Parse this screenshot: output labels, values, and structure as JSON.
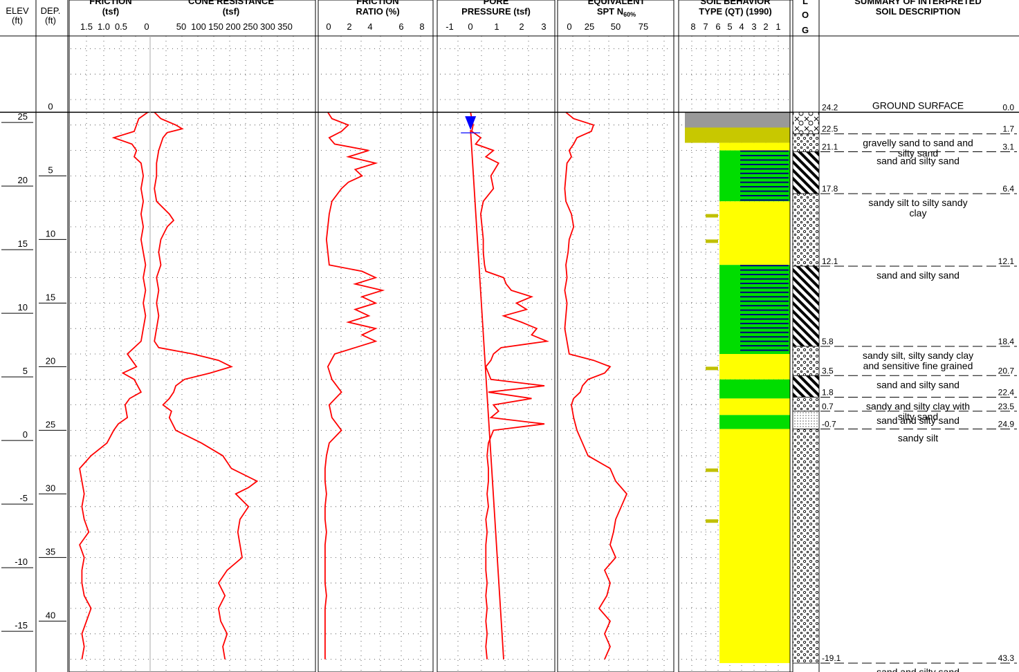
{
  "headers": {
    "elev": "ELEV",
    "elev_unit": "(ft)",
    "dep": "DEP.",
    "dep_unit": "(ft)",
    "friction": "FRICTION",
    "friction_unit": "(tsf)",
    "cone": "CONE RESISTANCE",
    "cone_unit": "(tsf)",
    "fr": "FRICTION",
    "fr_unit": "RATIO (%)",
    "pore": "PORE",
    "pore_unit": "PRESSURE (tsf)",
    "spt": "EQUIVALENT",
    "spt_unit_a": "SPT N",
    "spt_unit_sub": "60%",
    "sbt": "SOIL BEHAVIOR",
    "sbt_unit": "TYPE (QT) (1990)",
    "log_l": "L",
    "log_o": "O",
    "log_g": "G",
    "summary": "SUMMARY OF INTERPRETED",
    "summary_unit": "SOIL DESCRIPTION"
  },
  "axes": {
    "elev_ticks": [
      "25",
      "20",
      "15",
      "10",
      "5",
      "0",
      "-5",
      "-10",
      "-15"
    ],
    "dep_ticks": [
      "0",
      "5",
      "10",
      "15",
      "20",
      "25",
      "30",
      "35",
      "40"
    ],
    "friction_ticks": [
      "1.5",
      "1.0",
      "0.5",
      "0"
    ],
    "cone_ticks": [
      "50",
      "100",
      "150",
      "200",
      "250",
      "300",
      "350"
    ],
    "fr_ticks": [
      "0",
      "2",
      "4",
      "6",
      "8"
    ],
    "pore_ticks": [
      "-1",
      "0",
      "1",
      "2",
      "3"
    ],
    "spt_ticks": [
      "0",
      "25",
      "50",
      "75"
    ],
    "sbt_ticks": [
      "8",
      "7",
      "6",
      "5",
      "4",
      "3",
      "2",
      "1"
    ]
  },
  "chart_data": {
    "type": "line",
    "depth_range_ft": [
      -6,
      44
    ],
    "ground_surface_elev_ft": 24.2,
    "groundwater_depth_ft": 1.4,
    "series": [
      {
        "name": "FRICTION (tsf)",
        "xlim": [
          1.75,
          0
        ],
        "depth": [
          0,
          0.5,
          1,
          1.5,
          2,
          2.5,
          3,
          3.5,
          4,
          5,
          6,
          7,
          8,
          9,
          10,
          11,
          12,
          13,
          14,
          15,
          16,
          17,
          18,
          19,
          19.5,
          20,
          20.5,
          21,
          22,
          22.5,
          23,
          24,
          24.5,
          25,
          26,
          27,
          28,
          29,
          30,
          31,
          32,
          33,
          34,
          35,
          36,
          37,
          38,
          39,
          40,
          41,
          42,
          43
        ],
        "values": [
          0.05,
          0.25,
          0.3,
          0.35,
          0.8,
          0.4,
          0.3,
          0.35,
          0.2,
          0.15,
          0.2,
          0.15,
          0.2,
          0.15,
          0.2,
          0.15,
          0.1,
          0.15,
          0.1,
          0.15,
          0.1,
          0.15,
          0.2,
          0.5,
          0.4,
          0.3,
          0.6,
          0.35,
          0.2,
          0.45,
          0.55,
          0.5,
          0.7,
          0.8,
          0.95,
          1.3,
          1.55,
          1.5,
          1.45,
          1.5,
          1.45,
          1.35,
          1.55,
          1.45,
          1.5,
          1.5,
          1.45,
          1.3,
          1.4,
          1.5,
          1.45,
          1.5
        ]
      },
      {
        "name": "CONE RESISTANCE (tsf)",
        "xlim": [
          0,
          380
        ],
        "depth": [
          0,
          0.5,
          1,
          1.3,
          1.6,
          2,
          2.5,
          3,
          4,
          5,
          6,
          7,
          8,
          8.5,
          9,
          10,
          11,
          12,
          13,
          14,
          15,
          16,
          17,
          18,
          18.5,
          19,
          19.5,
          20,
          20.5,
          21,
          21.5,
          22,
          22.5,
          23,
          23.5,
          24,
          25,
          26,
          27,
          28,
          29,
          29.5,
          30,
          31,
          32,
          33,
          34,
          35,
          36,
          37,
          38,
          39,
          40,
          41,
          42,
          43
        ],
        "values": [
          10,
          25,
          60,
          75,
          40,
          30,
          25,
          20,
          15,
          15,
          10,
          15,
          45,
          55,
          40,
          25,
          20,
          25,
          15,
          20,
          15,
          20,
          15,
          10,
          20,
          100,
          160,
          190,
          140,
          80,
          60,
          55,
          45,
          30,
          50,
          45,
          60,
          120,
          170,
          190,
          250,
          230,
          200,
          230,
          210,
          205,
          210,
          215,
          180,
          160,
          175,
          160,
          165,
          180,
          170,
          175
        ]
      },
      {
        "name": "FRICTION RATIO (%)",
        "xlim": [
          0,
          8
        ],
        "depth": [
          0,
          0.5,
          1,
          1.5,
          2,
          2.5,
          3,
          3.5,
          4,
          4.5,
          5,
          5.5,
          6,
          7,
          8,
          9,
          10,
          11,
          12,
          12.5,
          13,
          13.5,
          14,
          14.5,
          15,
          15.5,
          16,
          16.5,
          17,
          17.5,
          18,
          18.5,
          19,
          20,
          21,
          22,
          23,
          24,
          25,
          26,
          27,
          28,
          29,
          30,
          31,
          32,
          33,
          34,
          35,
          36,
          37,
          38,
          39,
          40,
          41,
          42,
          43
        ],
        "values": [
          0.5,
          0.8,
          2,
          1.5,
          0.6,
          1,
          3.5,
          2,
          4,
          2.5,
          3,
          2,
          1.5,
          0.8,
          0.6,
          0.5,
          0.4,
          0.5,
          0.6,
          3,
          4,
          2.5,
          4.5,
          3,
          4,
          2.5,
          3.5,
          2,
          4,
          3,
          4,
          2.5,
          1,
          0.5,
          0.8,
          1.5,
          0.6,
          0.8,
          1.5,
          0.6,
          0.4,
          0.3,
          0.3,
          0.4,
          0.3,
          0.3,
          0.4,
          0.3,
          0.3,
          0.3,
          0.3,
          0.4,
          0.3,
          0.3,
          0.3,
          0.3,
          0.3
        ]
      },
      {
        "name": "PORE PRESSURE (tsf)",
        "xlim": [
          -1.2,
          3.2
        ],
        "depth": [
          0,
          0.5,
          1,
          1.5,
          2,
          2.5,
          3,
          3.5,
          4,
          5,
          6,
          7,
          8,
          9,
          10,
          11,
          12,
          12.5,
          13,
          13.5,
          14,
          14.5,
          15,
          15.5,
          16,
          16.5,
          17,
          17.5,
          18,
          18.5,
          19,
          19.5,
          20,
          21,
          21.5,
          22,
          22.5,
          23,
          23.5,
          24,
          24.5,
          25,
          26,
          27,
          28,
          29,
          30,
          31,
          32,
          33,
          34,
          35,
          36,
          37,
          38,
          39,
          40,
          41,
          42,
          43
        ],
        "values": [
          0,
          0.05,
          0.1,
          0.05,
          0.4,
          0.2,
          0.9,
          0.6,
          1.1,
          0.8,
          0.9,
          0.5,
          0.4,
          0.45,
          0.5,
          0.5,
          0.55,
          0.6,
          1.3,
          1.4,
          1.6,
          2.4,
          1.8,
          2.2,
          1.3,
          2.0,
          2.6,
          2.4,
          3.0,
          1.2,
          0.9,
          0.8,
          0.6,
          0.8,
          2.9,
          0.7,
          2.4,
          0.9,
          1.1,
          0.8,
          2.9,
          0.9,
          0.7,
          0.65,
          0.7,
          0.7,
          0.65,
          0.7,
          0.6,
          0.65,
          0.6,
          0.6,
          0.6,
          0.65,
          0.6,
          0.65,
          0.6,
          0.65,
          0.6,
          0.65
        ]
      },
      {
        "name": "HYDROSTATIC (tsf)",
        "xlim": [
          -1.2,
          3.2
        ],
        "depth": [
          1.4,
          43
        ],
        "values": [
          0,
          1.3
        ]
      },
      {
        "name": "EQUIVALENT SPT N60%",
        "xlim": [
          0,
          100
        ],
        "depth": [
          0,
          0.5,
          1,
          1.5,
          2,
          2.5,
          3,
          3.5,
          4,
          5,
          6,
          7,
          8,
          9,
          10,
          11,
          12,
          13,
          14,
          15,
          16,
          17,
          18,
          19,
          19.5,
          20,
          20.5,
          21,
          21.5,
          22,
          22.5,
          23,
          24,
          25,
          26,
          27,
          28,
          29,
          30,
          31,
          32,
          33,
          34,
          35,
          36,
          37,
          38,
          39,
          40,
          41,
          42,
          43
        ],
        "values": [
          5,
          12,
          30,
          28,
          15,
          12,
          8,
          10,
          6,
          5,
          4,
          5,
          10,
          12,
          8,
          7,
          5,
          6,
          4,
          6,
          5,
          4,
          6,
          8,
          30,
          45,
          40,
          25,
          20,
          18,
          12,
          10,
          12,
          15,
          20,
          25,
          45,
          50,
          60,
          55,
          50,
          48,
          45,
          50,
          40,
          45,
          42,
          35,
          45,
          40,
          45,
          40
        ]
      }
    ],
    "soil_behavior_bands": [
      {
        "top": 0,
        "bottom": 1.2,
        "zone": 9,
        "color": "#999999"
      },
      {
        "top": 1.2,
        "bottom": 2.4,
        "zone": 8,
        "color": "#c8c800"
      },
      {
        "top": 2.4,
        "bottom": 3.0,
        "zone": 7,
        "color": "#ffff00"
      },
      {
        "top": 3.0,
        "bottom": 7.0,
        "zone": 5,
        "color": "#00dd00"
      },
      {
        "top": 7.0,
        "bottom": 12.0,
        "zone": 7,
        "color": "#ffff00"
      },
      {
        "top": 12.0,
        "bottom": 19.0,
        "zone": 4,
        "color": "#00dd00"
      },
      {
        "top": 19.0,
        "bottom": 21.0,
        "zone": 7,
        "color": "#ffff00"
      },
      {
        "top": 21.0,
        "bottom": 22.5,
        "zone": 5,
        "color": "#00dd00"
      },
      {
        "top": 22.5,
        "bottom": 23.8,
        "zone": 7,
        "color": "#ffff00"
      },
      {
        "top": 23.8,
        "bottom": 24.9,
        "zone": 6,
        "color": "#00dd00"
      },
      {
        "top": 24.9,
        "bottom": 43.3,
        "zone": 7,
        "color": "#ffff00"
      }
    ],
    "layers": [
      {
        "top_elev": "24.2",
        "top_depth": "0.0",
        "description": [
          "GROUND SURFACE"
        ],
        "pattern": "none"
      },
      {
        "top_elev": "22.5",
        "top_depth": "1.7",
        "description": [
          "gravelly sand to sand and",
          "silty sand"
        ],
        "pattern": "gravel"
      },
      {
        "top_elev": "21.1",
        "top_depth": "3.1",
        "description": [
          "sand and silty sand"
        ],
        "pattern": "dots"
      },
      {
        "top_elev": "17.8",
        "top_depth": "6.4",
        "description": [
          "sandy silt to silty sandy",
          "clay"
        ],
        "pattern": "hatch"
      },
      {
        "top_elev": "12.1",
        "top_depth": "12.1",
        "description": [
          "sand and silty sand"
        ],
        "pattern": "dots"
      },
      {
        "top_elev": "5.8",
        "top_depth": "18.4",
        "description": [
          "sandy silt, silty sandy clay",
          "and sensitive fine grained"
        ],
        "pattern": "hatch"
      },
      {
        "top_elev": "3.5",
        "top_depth": "20.7",
        "description": [
          "sand and silty sand"
        ],
        "pattern": "dots"
      },
      {
        "top_elev": "1.8",
        "top_depth": "22.4",
        "description": [
          "sandy and silty clay with",
          "silty sand"
        ],
        "pattern": "hatch"
      },
      {
        "top_elev": "0.7",
        "top_depth": "23.5",
        "description": [
          "sand and silty sand"
        ],
        "pattern": "dots"
      },
      {
        "top_elev": "-0.7",
        "top_depth": "24.9",
        "description": [
          "sandy silt"
        ],
        "pattern": "fine"
      },
      {
        "top_elev": "-19.1",
        "top_depth": "43.3",
        "description": [
          "sand and silty sand"
        ],
        "pattern": "dots"
      }
    ]
  }
}
